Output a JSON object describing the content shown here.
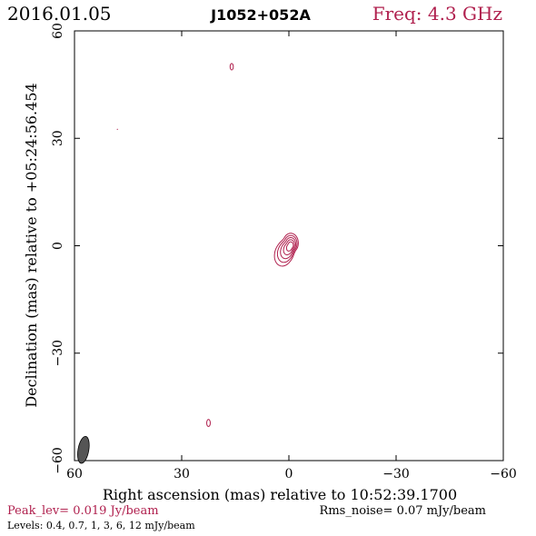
{
  "header": {
    "date": "2016.01.05",
    "source": "J1052+052A",
    "freq": "Freq: 4.3 GHz"
  },
  "footer": {
    "peak": "Peak_lev=  0.019 Jy/beam",
    "rms": "Rms_noise= 0.07 mJy/beam",
    "levels": "Levels: 0.4, 0.7,   1,   3,   6,   12 mJy/beam"
  },
  "colors": {
    "contour": "#b0204e",
    "axis": "#000000",
    "beam": "#555555"
  },
  "chart_data": {
    "type": "contour",
    "xlabel": "Right ascension (mas) relative to 10:52:39.1700",
    "ylabel": "Declination (mas) relative to +05:24:56.454",
    "xlim": [
      60,
      -60
    ],
    "ylim": [
      -60,
      60
    ],
    "x_ticks": [
      60,
      30,
      0,
      -30,
      -60
    ],
    "y_ticks": [
      -60,
      -30,
      0,
      30,
      60
    ],
    "x_tick_labels": [
      "60",
      "30",
      "0",
      "−30",
      "−60"
    ],
    "y_tick_labels": [
      "−60",
      "−30",
      "0",
      "30",
      "60"
    ],
    "contour_levels_mJy": [
      0.4,
      0.7,
      1,
      3,
      6,
      12
    ],
    "components": [
      {
        "x": 16,
        "y": 50,
        "rx": 0.45,
        "ry": 0.9
      },
      {
        "x": 22.5,
        "y": -49.5,
        "rx": 0.5,
        "ry": 1.0
      }
    ],
    "core": {
      "x": 0,
      "y": 0,
      "rings": 5
    },
    "beam": {
      "x": 57.5,
      "y": -57,
      "major": 3.8,
      "minor": 1.5,
      "pa_deg": 10
    }
  }
}
